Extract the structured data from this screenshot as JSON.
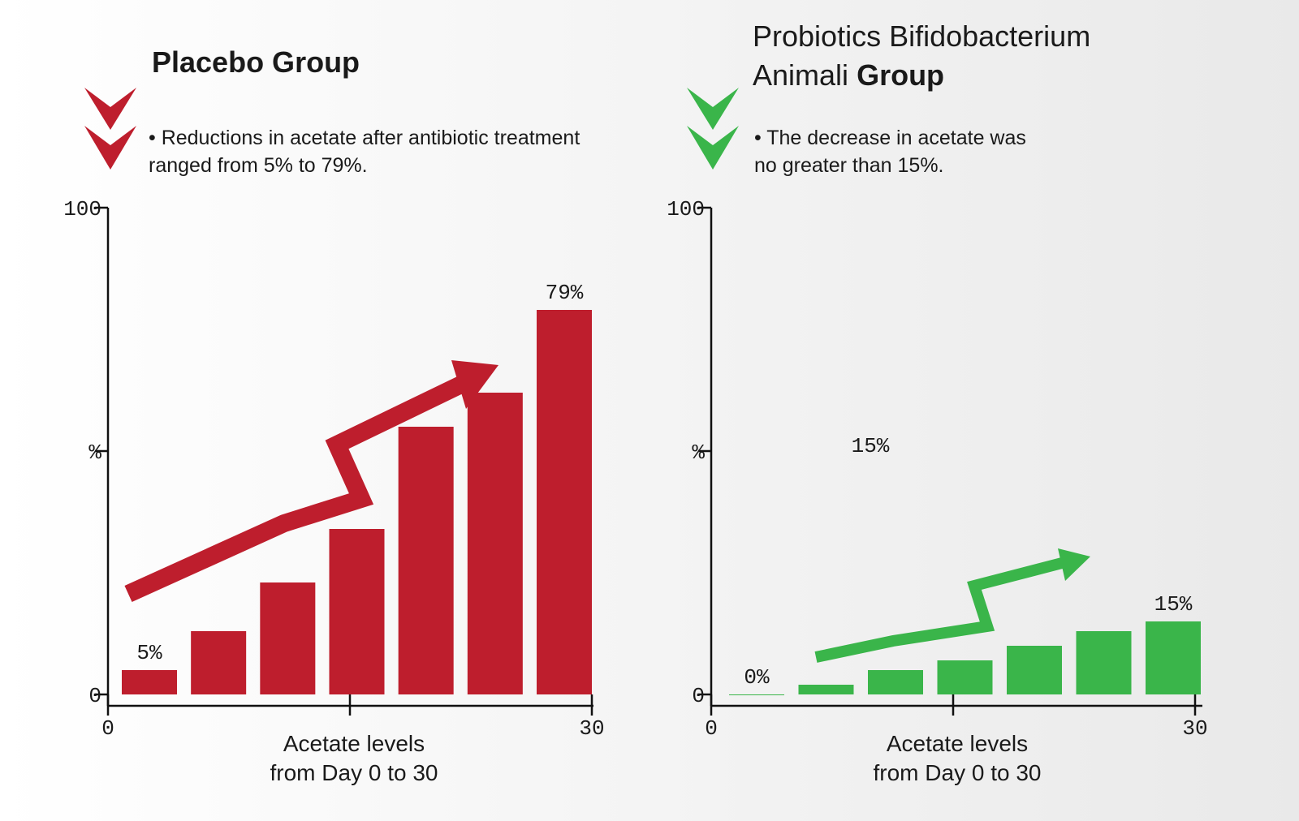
{
  "chart_data": [
    {
      "type": "bar",
      "title": "Placebo Group",
      "note": [
        "• Reductions in acetate after antibiotic treatment",
        "ranged from 5% to 79%."
      ],
      "values": [
        5,
        13,
        23,
        34,
        55,
        62,
        79
      ],
      "value_labels": [
        "5%",
        null,
        null,
        null,
        null,
        null,
        "79%"
      ],
      "color": "#be1e2d",
      "ylim": [
        0,
        100
      ],
      "yticks": [
        0,
        {
          "value": 50,
          "label": "%"
        },
        100
      ],
      "xlim": [
        0,
        30
      ],
      "xticks": [
        0,
        {
          "value": 15,
          "label": null
        },
        30
      ],
      "xlabel": [
        "Acetate levels",
        "from Day 0 to 30"
      ]
    },
    {
      "type": "bar",
      "title": [
        "Probiotics Bifidobacterium",
        "Animali",
        "Group"
      ],
      "note": [
        "• The decrease in acetate was",
        "no greater than 15%."
      ],
      "annotation": "15%",
      "values": [
        0,
        2,
        5,
        7,
        10,
        13,
        15
      ],
      "value_labels": [
        "0%",
        null,
        null,
        null,
        null,
        null,
        "15%"
      ],
      "color": "#3ab54a",
      "ylim": [
        0,
        100
      ],
      "yticks": [
        0,
        {
          "value": 50,
          "label": "%"
        },
        100
      ],
      "xlim": [
        0,
        30
      ],
      "xticks": [
        0,
        {
          "value": 15,
          "label": null
        },
        30
      ],
      "xlabel": [
        "Acetate levels",
        "from Day 0 to 30"
      ]
    }
  ]
}
